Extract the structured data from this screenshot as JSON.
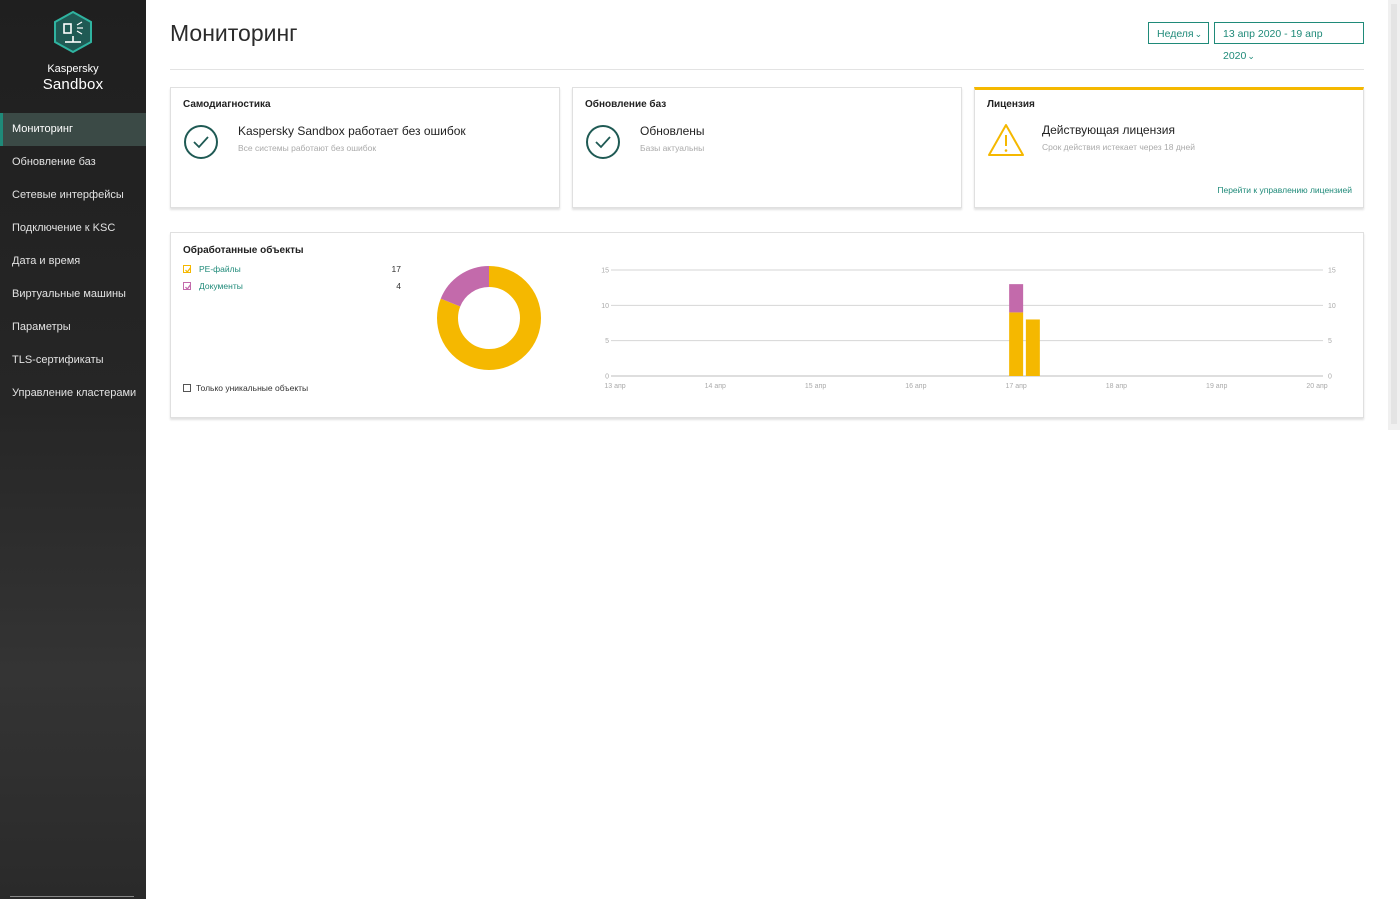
{
  "app": {
    "brand_top": "Kaspersky",
    "brand_main": "Sandbox",
    "accent_color": "#1f8a79"
  },
  "sidebar": {
    "items": [
      {
        "label": "Мониторинг",
        "active": true
      },
      {
        "label": "Обновление баз"
      },
      {
        "label": "Сетевые интерфейсы"
      },
      {
        "label": "Подключение к KSC"
      },
      {
        "label": "Дата и время"
      },
      {
        "label": "Виртуальные машины"
      },
      {
        "label": "Параметры"
      },
      {
        "label": "TLS-сертификаты"
      },
      {
        "label": "Управление кластерами"
      }
    ]
  },
  "header": {
    "title": "Мониторинг",
    "period_label": "Неделя",
    "date_range_label": "13 апр 2020 - 19 апр 2020"
  },
  "cards": {
    "selfdiag": {
      "title": "Самодиагностика",
      "status": "Kaspersky Sandbox работает без ошибок",
      "sub": "Все системы работают без ошибок",
      "icon": "check-circle-icon"
    },
    "updates": {
      "title": "Обновление баз",
      "status": "Обновлены",
      "sub": "Базы актуальны",
      "icon": "check-circle-icon"
    },
    "license": {
      "title": "Лицензия",
      "status": "Действующая лицензия",
      "sub": "Срок действия истекает через 18 дней",
      "link": "Перейти к управлению лицензией",
      "icon": "warning-triangle-icon",
      "accent_color": "#f5b800"
    }
  },
  "processed": {
    "title": "Обработанные объекты",
    "legend": [
      {
        "label": "PE-файлы",
        "count": "17",
        "color": "#f5b800"
      },
      {
        "label": "Документы",
        "count": "4",
        "color": "#c36aab"
      }
    ],
    "unique_only_label": "Только уникальные объекты",
    "unique_only_checked": false
  },
  "chart_data": [
    {
      "type": "pie",
      "donut": true,
      "labels": [
        "PE-файлы",
        "Документы"
      ],
      "values": [
        17,
        4
      ],
      "colors": [
        "#f5b800",
        "#c36aab"
      ]
    },
    {
      "type": "bar",
      "stacked": true,
      "categories": [
        "13 апр",
        "14 апр",
        "15 апр",
        "16 апр",
        "17 апр",
        "18 апр",
        "19 апр",
        "20 апр"
      ],
      "bars": [
        {
          "x": "2020-04-17T00:00",
          "pe": 9,
          "docs": 4
        },
        {
          "x": "2020-04-17T04:00",
          "pe": 8,
          "docs": 0
        }
      ],
      "series": [
        {
          "name": "PE-файлы",
          "color": "#f5b800"
        },
        {
          "name": "Документы",
          "color": "#c36aab"
        }
      ],
      "yticks": [
        0,
        5,
        10,
        15
      ],
      "ylim": [
        0,
        15
      ],
      "grid": true
    }
  ]
}
